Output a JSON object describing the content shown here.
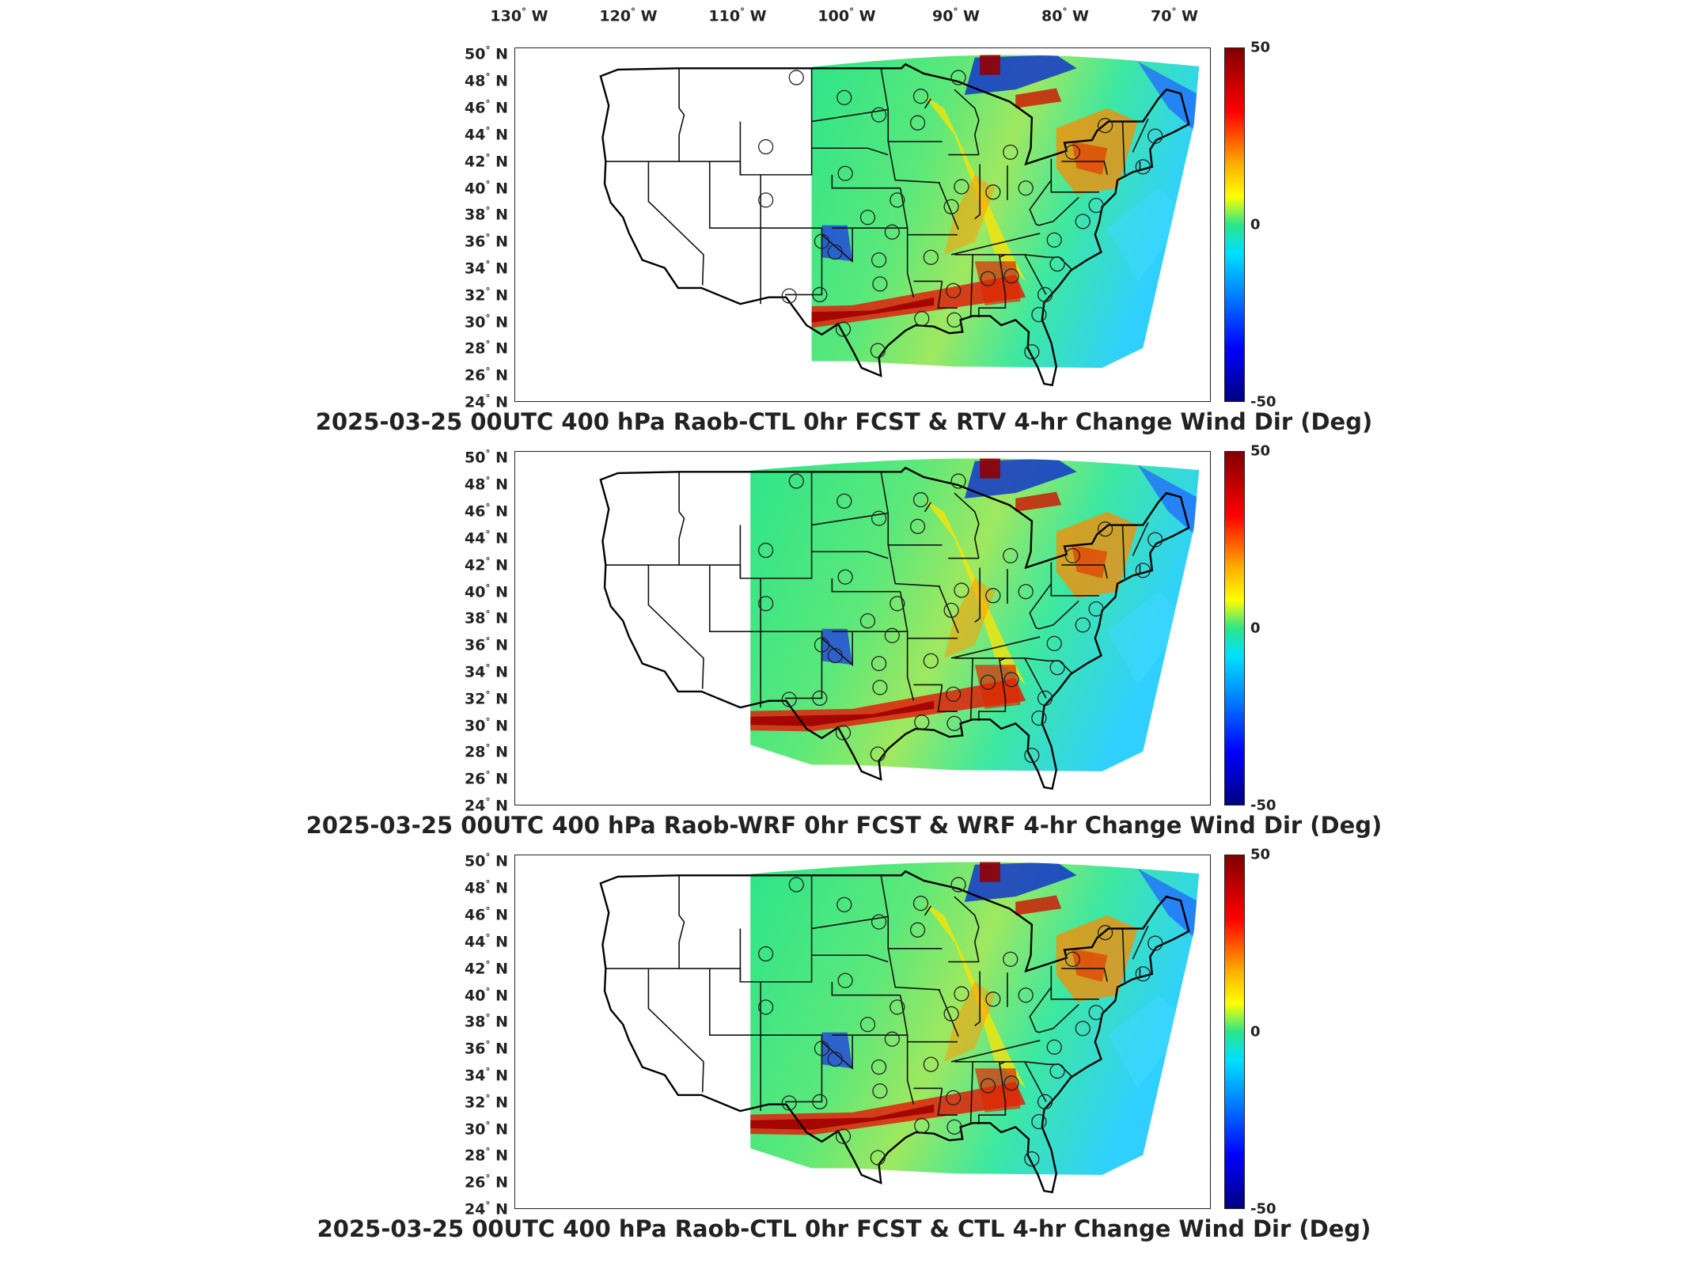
{
  "longitude_labels": [
    {
      "value": "130",
      "unit": "W"
    },
    {
      "value": "120",
      "unit": "W"
    },
    {
      "value": "110",
      "unit": "W"
    },
    {
      "value": "100",
      "unit": "W"
    },
    {
      "value": "90",
      "unit": "W"
    },
    {
      "value": "80",
      "unit": "W"
    },
    {
      "value": "70",
      "unit": "W"
    }
  ],
  "latitude_labels": [
    {
      "value": "50",
      "unit": "N"
    },
    {
      "value": "48",
      "unit": "N"
    },
    {
      "value": "46",
      "unit": "N"
    },
    {
      "value": "44",
      "unit": "N"
    },
    {
      "value": "42",
      "unit": "N"
    },
    {
      "value": "40",
      "unit": "N"
    },
    {
      "value": "38",
      "unit": "N"
    },
    {
      "value": "36",
      "unit": "N"
    },
    {
      "value": "34",
      "unit": "N"
    },
    {
      "value": "32",
      "unit": "N"
    },
    {
      "value": "30",
      "unit": "N"
    },
    {
      "value": "28",
      "unit": "N"
    },
    {
      "value": "26",
      "unit": "N"
    },
    {
      "value": "24",
      "unit": "N"
    }
  ],
  "colorbar": {
    "max_label": "50",
    "mid_label": "0",
    "min_label": "-50",
    "colors": [
      "#800000",
      "#ff0000",
      "#ffb000",
      "#ffff00",
      "#2de58a",
      "#00e0ff",
      "#0080ff",
      "#0000ff",
      "#00007f"
    ]
  },
  "panels": [
    {
      "title": "2025-03-25 00UTC 400 hPa Raob-CTL 0hr FCST & RTV 4-hr Change Wind Dir (Deg)",
      "domain_west_lon": -104
    },
    {
      "title": "2025-03-25 00UTC 400 hPa Raob-WRF 0hr FCST & WRF 4-hr Change Wind Dir (Deg)",
      "domain_west_lon": -110
    },
    {
      "title": "2025-03-25 00UTC 400 hPa Raob-CTL 0hr FCST & CTL 4-hr Change Wind Dir (Deg)",
      "domain_west_lon": -110
    }
  ],
  "raob_stations": [
    {
      "lon": -105.5,
      "lat": 48.3
    },
    {
      "lon": -100.8,
      "lat": 46.8
    },
    {
      "lon": -97.4,
      "lat": 45.5
    },
    {
      "lon": -93.6,
      "lat": 44.9
    },
    {
      "lon": -96.1,
      "lat": 36.7
    },
    {
      "lon": -101.7,
      "lat": 35.2
    },
    {
      "lon": -97.4,
      "lat": 34.6
    },
    {
      "lon": -92.3,
      "lat": 34.8
    },
    {
      "lon": -90.1,
      "lat": 32.3
    },
    {
      "lon": -86.7,
      "lat": 33.2
    },
    {
      "lon": -84.4,
      "lat": 33.4
    },
    {
      "lon": -81.1,
      "lat": 32.0
    },
    {
      "lon": -81.7,
      "lat": 30.5
    },
    {
      "lon": -82.4,
      "lat": 27.7
    },
    {
      "lon": -90.0,
      "lat": 30.1
    },
    {
      "lon": -93.2,
      "lat": 30.2
    },
    {
      "lon": -97.5,
      "lat": 27.8
    },
    {
      "lon": -100.9,
      "lat": 29.4
    },
    {
      "lon": -106.2,
      "lat": 31.9
    },
    {
      "lon": -103.2,
      "lat": 32.0
    },
    {
      "lon": -97.3,
      "lat": 32.8
    },
    {
      "lon": -95.6,
      "lat": 39.1
    },
    {
      "lon": -98.5,
      "lat": 37.8
    },
    {
      "lon": -100.7,
      "lat": 41.1
    },
    {
      "lon": -89.3,
      "lat": 40.1
    },
    {
      "lon": -86.2,
      "lat": 39.7
    },
    {
      "lon": -83.0,
      "lat": 40.0
    },
    {
      "lon": -84.5,
      "lat": 42.7
    },
    {
      "lon": -78.4,
      "lat": 42.7
    },
    {
      "lon": -76.1,
      "lat": 38.7
    },
    {
      "lon": -77.4,
      "lat": 37.5
    },
    {
      "lon": -80.2,
      "lat": 36.1
    },
    {
      "lon": -79.9,
      "lat": 34.3
    },
    {
      "lon": -90.3,
      "lat": 38.6
    },
    {
      "lon": -93.3,
      "lat": 46.9
    },
    {
      "lon": -89.6,
      "lat": 48.3
    },
    {
      "lon": -108.5,
      "lat": 43.1
    },
    {
      "lon": -108.5,
      "lat": 39.1
    },
    {
      "lon": -103.0,
      "lat": 36.0
    },
    {
      "lon": -71.5,
      "lat": 41.6
    },
    {
      "lon": -70.3,
      "lat": 43.9
    },
    {
      "lon": -75.2,
      "lat": 44.7
    }
  ]
}
